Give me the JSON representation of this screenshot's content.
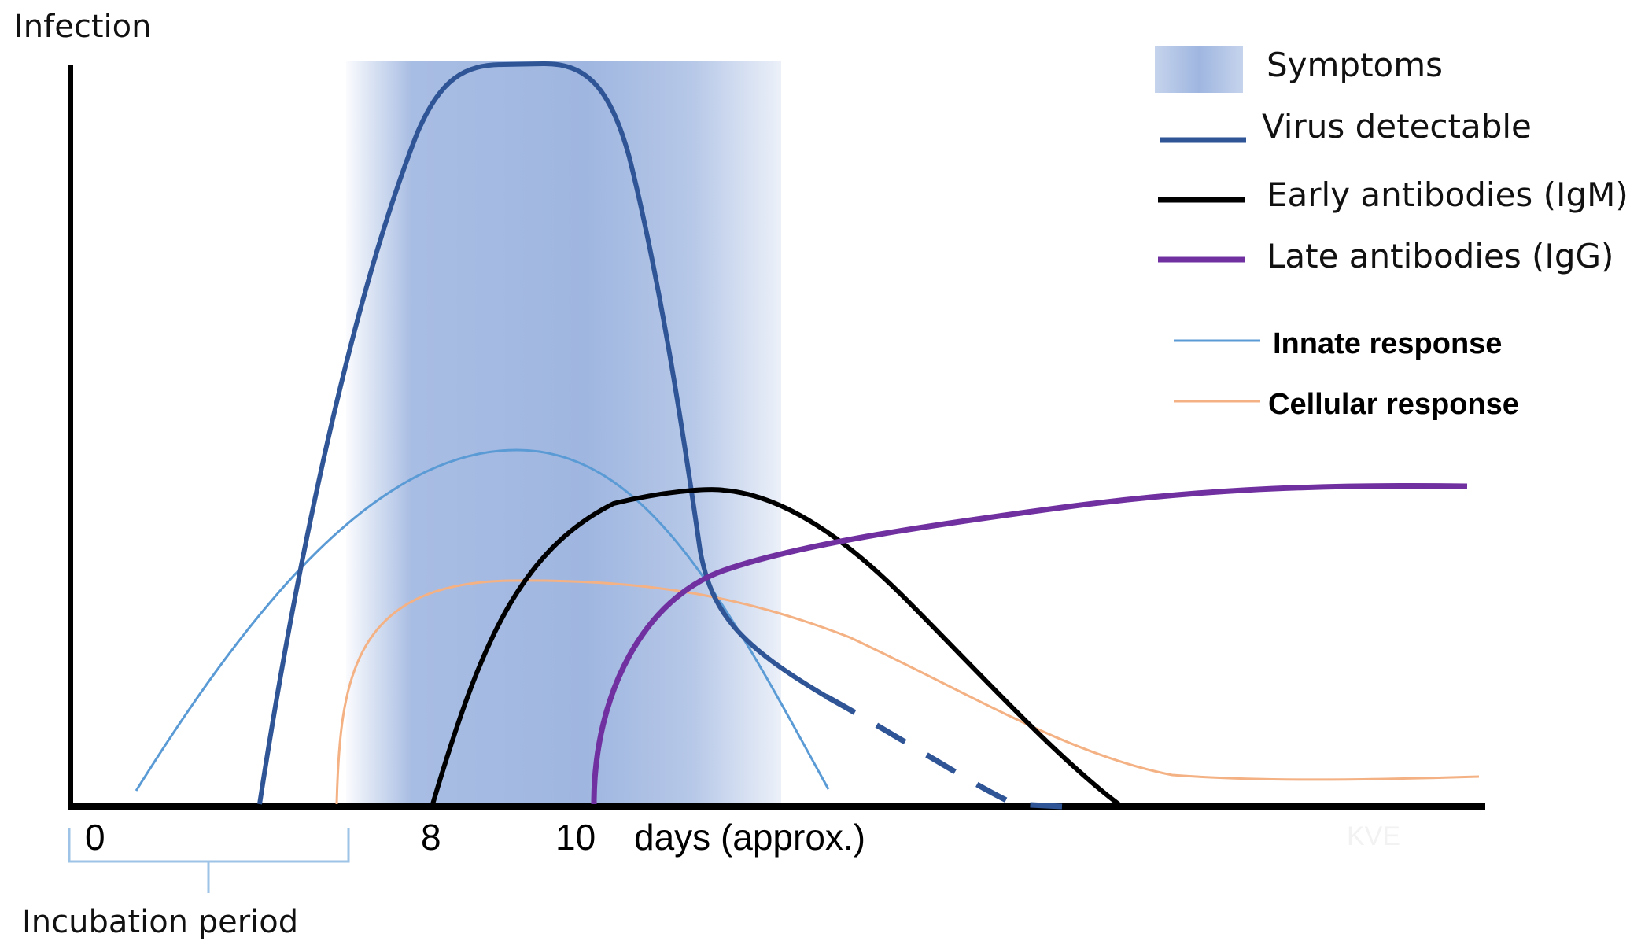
{
  "y_axis_label": "Infection",
  "x_ticks": [
    "0",
    "8",
    "10"
  ],
  "x_axis_unit": "days (approx.)",
  "incubation_label": "Incubation period",
  "watermark": "KVE",
  "legend": {
    "symptoms": "Symptoms",
    "virus": "Virus detectable",
    "igm": "Early antibodies (IgM)",
    "igg": "Late antibodies (IgG)",
    "innate": "Innate response",
    "cellular": "Cellular response"
  },
  "colors": {
    "symptoms": "#9fb6e0",
    "virus": "#2f5597",
    "igm": "#000000",
    "igg": "#7030a0",
    "innate": "#5b9bd5",
    "cellular": "#f4b183",
    "bracket": "#9dc3e6"
  }
}
